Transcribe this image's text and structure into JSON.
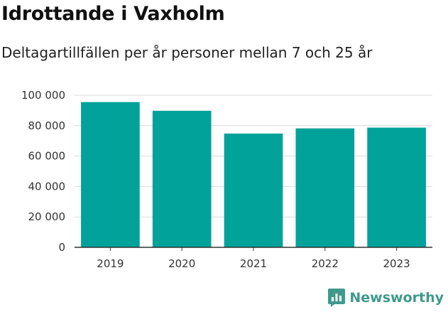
{
  "header": {
    "title": "Idrottande i Vaxholm",
    "subtitle": "Deltagartillfällen per år personer mellan 7 och 25 år"
  },
  "brand": {
    "name": "Newsworthy",
    "icon": "newsworthy-logo-icon",
    "color": "#3f9a8c"
  },
  "colors": {
    "bar": "#00a29a",
    "grid": "#d9d9d9",
    "axis": "#333333"
  },
  "chart_data": {
    "type": "bar",
    "title": "Idrottande i Vaxholm",
    "subtitle": "Deltagartillfällen per år personer mellan 7 och 25 år",
    "categories": [
      "2019",
      "2020",
      "2021",
      "2022",
      "2023"
    ],
    "values": [
      95500,
      89800,
      74800,
      78200,
      78700
    ],
    "yticks": [
      0,
      20000,
      40000,
      60000,
      80000,
      100000
    ],
    "ytick_labels": [
      "0",
      "20 000",
      "40 000",
      "60 000",
      "80 000",
      "100 000"
    ],
    "ylim": [
      0,
      100000
    ],
    "grid": true,
    "legend": "none"
  }
}
